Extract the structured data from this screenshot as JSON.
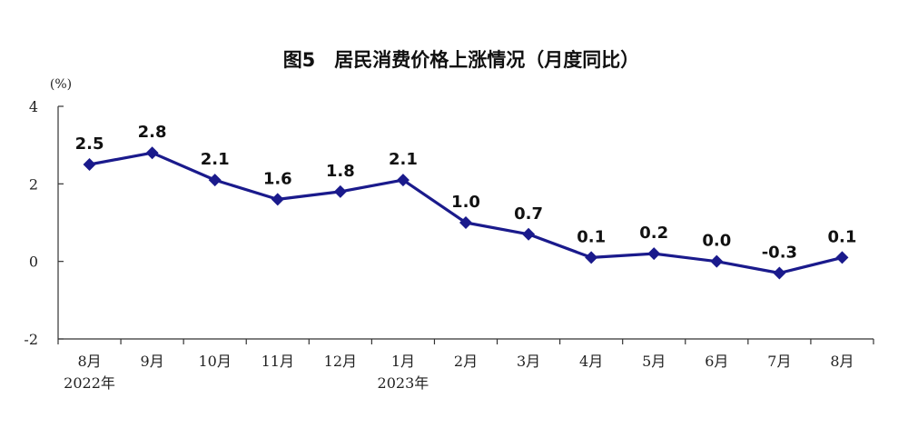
{
  "chart_data": {
    "type": "line",
    "title": "图5　居民消费价格上涨情况（月度同比）",
    "unit_label": "(%)",
    "categories": [
      "8月",
      "9月",
      "10月",
      "11月",
      "12月",
      "1月",
      "2月",
      "3月",
      "4月",
      "5月",
      "6月",
      "7月",
      "8月"
    ],
    "year_labels": [
      {
        "category_index": 0,
        "label": "2022年"
      },
      {
        "category_index": 5,
        "label": "2023年"
      }
    ],
    "series": [
      {
        "values": [
          2.5,
          2.8,
          2.1,
          1.6,
          1.8,
          2.1,
          1.0,
          0.7,
          0.1,
          0.2,
          0.0,
          -0.3,
          0.1
        ],
        "labels": [
          "2.5",
          "2.8",
          "2.1",
          "1.6",
          "1.8",
          "2.1",
          "1.0",
          "0.7",
          "0.1",
          "0.2",
          "0.0",
          "-0.3",
          "0.1"
        ],
        "color": "#1a1a8c"
      }
    ],
    "yticks": [
      4,
      2,
      0,
      -2
    ],
    "ylim": [
      -2,
      4
    ],
    "xlabel": "",
    "ylabel": "",
    "grid": false,
    "legend": "none"
  }
}
